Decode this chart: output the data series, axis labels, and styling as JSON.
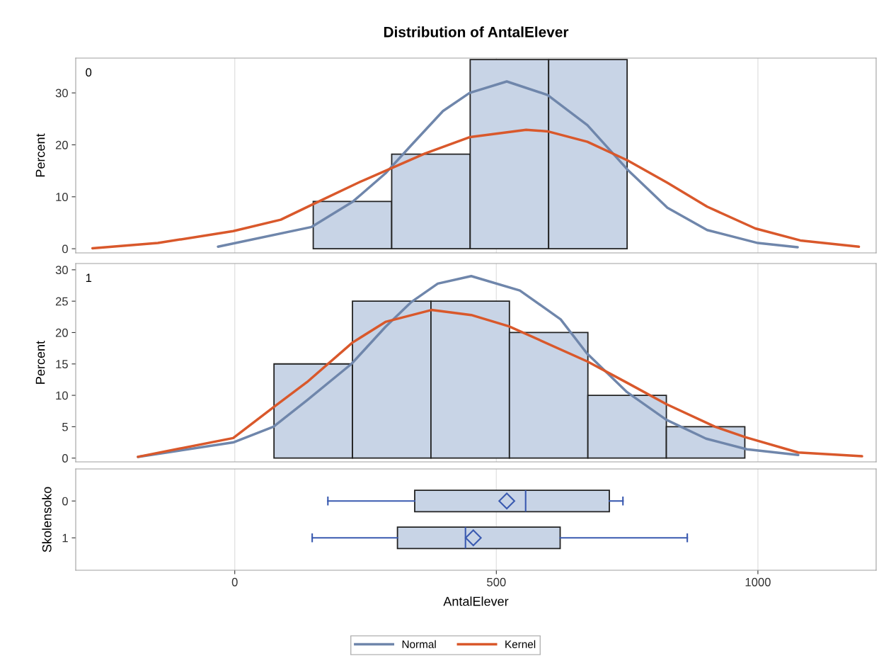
{
  "chart_data": [
    {
      "type": "histogram",
      "title": "Distribution of AntalElever",
      "ylabel": "Percent",
      "annotations": [
        "0"
      ],
      "bins": [
        150,
        300,
        450,
        600,
        750
      ],
      "values": [
        9.1,
        18.2,
        36.4,
        36.4
      ],
      "color": "#c8d4e6",
      "xlim": [
        -304,
        1226
      ],
      "xticks": [
        0,
        500,
        1000
      ],
      "ylim": [
        -0.8,
        36.7
      ],
      "yticks": [
        0,
        10,
        20,
        30
      ],
      "tick_labels": "y",
      "grid": "x",
      "legend": "bottom",
      "series": [
        {
          "name": "Normal",
          "type": "line",
          "color": "#6f86ab",
          "x": [
            -32,
            147,
            226,
            288,
            338,
            398,
            449,
            520,
            598,
            674,
            751,
            827,
            903,
            1000,
            1076
          ],
          "values": [
            0.4,
            4.2,
            9.1,
            14.5,
            20.0,
            26.5,
            30.0,
            32.2,
            29.6,
            23.8,
            15.2,
            7.9,
            3.6,
            1.1,
            0.3
          ]
        },
        {
          "name": "Kernel",
          "type": "line",
          "color": "#d9582b",
          "x": [
            -272,
            -147,
            -3,
            88,
            150,
            238,
            295,
            363,
            450,
            557,
            598,
            674,
            751,
            827,
            903,
            995,
            1081,
            1193
          ],
          "values": [
            0.1,
            1.1,
            3.4,
            5.6,
            8.6,
            12.8,
            15.3,
            18.3,
            21.5,
            22.9,
            22.6,
            20.6,
            17.0,
            12.7,
            8.1,
            3.9,
            1.6,
            0.4
          ]
        }
      ]
    },
    {
      "type": "histogram",
      "ylabel": "Percent",
      "annotations": [
        "1"
      ],
      "bins": [
        75,
        225,
        375,
        525,
        675,
        825,
        975
      ],
      "values": [
        15,
        25,
        25,
        20,
        10,
        5
      ],
      "color": "#c8d4e6",
      "xlim": [
        -304,
        1226
      ],
      "xticks": [
        0,
        500,
        1000
      ],
      "ylim": [
        -0.6,
        31.0
      ],
      "yticks": [
        0,
        5,
        10,
        15,
        20,
        25,
        30
      ],
      "tick_labels": "y",
      "grid": "x",
      "series": [
        {
          "name": "Normal",
          "type": "line",
          "color": "#6f86ab",
          "x": [
            -185,
            -3,
            74,
            138,
            223,
            288,
            338,
            388,
            452,
            545,
            623,
            673,
            750,
            825,
            901,
            979,
            1077
          ],
          "values": [
            0.2,
            2.5,
            5.0,
            9.2,
            15.0,
            20.9,
            24.9,
            27.8,
            29.0,
            26.7,
            22.1,
            16.7,
            10.5,
            6.1,
            3.1,
            1.4,
            0.5
          ]
        },
        {
          "name": "Kernel",
          "type": "line",
          "color": "#d9582b",
          "x": [
            -185,
            -3,
            74,
            138,
            225,
            288,
            376,
            452,
            524,
            674,
            750,
            825,
            918,
            977,
            1077,
            1199
          ],
          "values": [
            0.2,
            3.2,
            8.1,
            12.1,
            18.4,
            21.7,
            23.6,
            22.8,
            21.0,
            15.4,
            12.0,
            8.6,
            5.0,
            3.3,
            0.9,
            0.3
          ]
        }
      ]
    },
    {
      "type": "box",
      "orientation": "horizontal",
      "ylabel": "Skolensoko",
      "xlabel": "AntalElever",
      "categories": [
        "0",
        "1"
      ],
      "color": "#c8d4e6",
      "xlim": [
        -304,
        1226
      ],
      "xticks": [
        0,
        500,
        1000
      ],
      "grid": "x",
      "boxes": [
        {
          "low": 178,
          "q1": 344,
          "median": 556,
          "q3": 716,
          "high": 742,
          "mean": 520
        },
        {
          "low": 148,
          "q1": 311,
          "median": 441,
          "q3": 622,
          "high": 865,
          "mean": 456
        }
      ]
    }
  ]
}
